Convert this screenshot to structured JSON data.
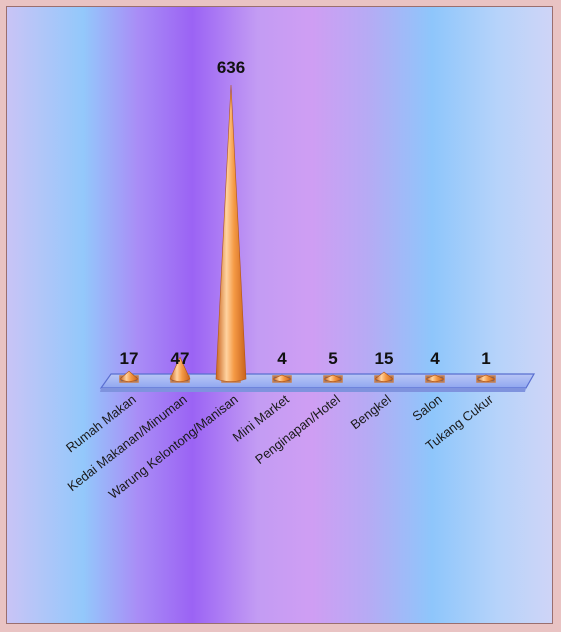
{
  "chart_data": {
    "type": "bar",
    "title": "",
    "xlabel": "",
    "ylabel": "",
    "categories": [
      "Rumah Makan",
      "Kedai Makanan/Minuman",
      "Warung Kelontong/Manisan",
      "Mini Market",
      "Penginapan/Hotel",
      "Bengkel",
      "Salon",
      "Tukang Cukur"
    ],
    "values": [
      17,
      47,
      636,
      4,
      5,
      15,
      4,
      1
    ],
    "data_labels": [
      "17",
      "47",
      "636",
      "4",
      "5",
      "15",
      "4",
      "1"
    ],
    "ylim": [
      0,
      636
    ],
    "grid": false,
    "legend": "none",
    "colors": {
      "bar_light": "#ffd3a0",
      "bar_mid": "#f59a45",
      "bar_dark": "#c8621c",
      "floor_fill": "#8fa7f0",
      "floor_edge": "#5a6fd0"
    }
  }
}
